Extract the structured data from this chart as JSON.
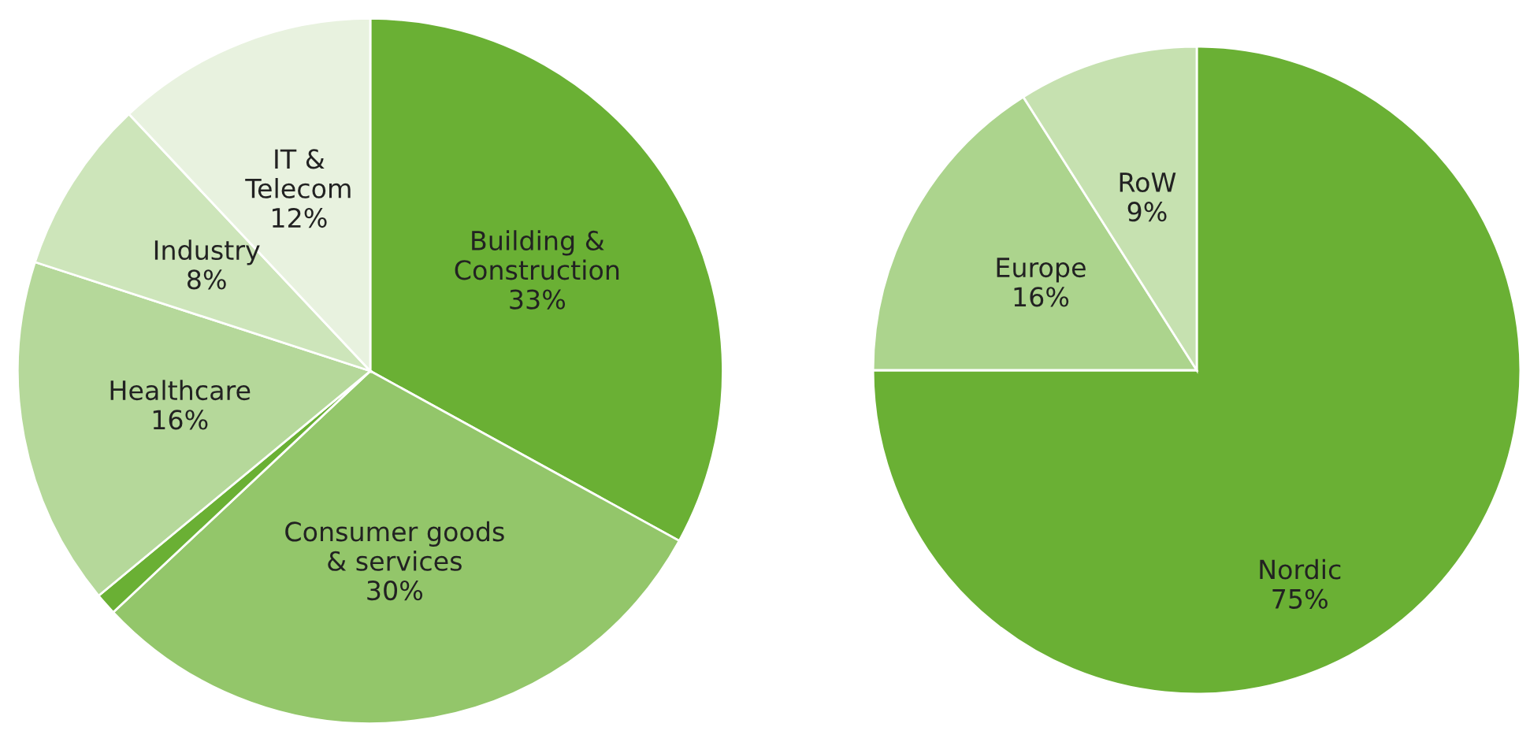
{
  "chart_data": [
    {
      "type": "pie",
      "categories": [
        "Building &\nConstruction",
        "Consumer goods\n& services",
        null,
        "Healthcare",
        "Industry",
        "IT &\nTelecom"
      ],
      "values": [
        33,
        30,
        1,
        16,
        8,
        12
      ],
      "value_labels": [
        "33%",
        "30%",
        null,
        "16%",
        "8%",
        "12%"
      ],
      "colors": [
        "#6ab034",
        "#93c66a",
        "#6ab034",
        "#b5d89a",
        "#cde5ba",
        "#e8f2df"
      ]
    },
    {
      "type": "pie",
      "categories": [
        "Nordic",
        "Europe",
        "RoW"
      ],
      "values": [
        75,
        16,
        9
      ],
      "value_labels": [
        "75%",
        "16%",
        "9%"
      ],
      "colors": [
        "#6ab034",
        "#acd48d",
        "#c6e1b0"
      ]
    }
  ]
}
